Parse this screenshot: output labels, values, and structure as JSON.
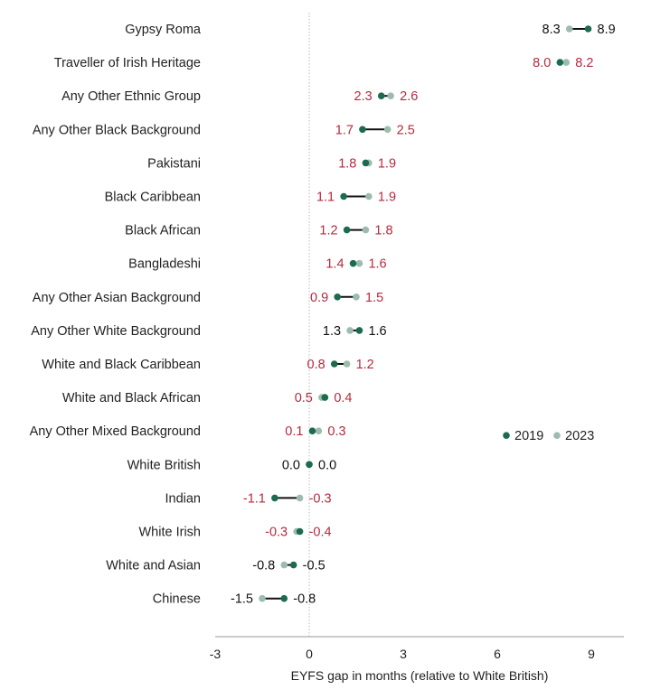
{
  "chart_data": {
    "type": "dumbbell",
    "xlabel": "EYFS gap in months (relative to White British)",
    "xlim": [
      -3,
      10
    ],
    "xticks": [
      -3,
      0,
      3,
      6,
      9
    ],
    "zero_line": "dotted",
    "legend": {
      "placement": "right",
      "entries": [
        "2019",
        "2023"
      ]
    },
    "colors": {
      "y2019": "#1b6b4f",
      "y2023": "#9dbcad",
      "connector": "#111111",
      "label_red": "#b52a3e",
      "label_black": "#111111",
      "axis": "#999999",
      "text": "#222222"
    },
    "rows": [
      {
        "category": "Gypsy Roma",
        "v2019": 8.9,
        "v2023": 8.3,
        "label_left": "8.3",
        "label_right": "8.9",
        "label_color": "black"
      },
      {
        "category": "Traveller of Irish Heritage",
        "v2019": 8.0,
        "v2023": 8.2,
        "label_left": "8.0",
        "label_right": "8.2",
        "label_color": "red"
      },
      {
        "category": "Any Other Ethnic Group",
        "v2019": 2.3,
        "v2023": 2.6,
        "label_left": "2.3",
        "label_right": "2.6",
        "label_color": "red"
      },
      {
        "category": "Any Other Black Background",
        "v2019": 1.7,
        "v2023": 2.5,
        "label_left": "1.7",
        "label_right": "2.5",
        "label_color": "red"
      },
      {
        "category": "Pakistani",
        "v2019": 1.8,
        "v2023": 1.9,
        "label_left": "1.8",
        "label_right": "1.9",
        "label_color": "red"
      },
      {
        "category": "Black Caribbean",
        "v2019": 1.1,
        "v2023": 1.9,
        "label_left": "1.1",
        "label_right": "1.9",
        "label_color": "red"
      },
      {
        "category": "Black African",
        "v2019": 1.2,
        "v2023": 1.8,
        "label_left": "1.2",
        "label_right": "1.8",
        "label_color": "red"
      },
      {
        "category": "Bangladeshi",
        "v2019": 1.4,
        "v2023": 1.6,
        "label_left": "1.4",
        "label_right": "1.6",
        "label_color": "red"
      },
      {
        "category": "Any Other Asian Background",
        "v2019": 0.9,
        "v2023": 1.5,
        "label_left": "0.9",
        "label_right": "1.5",
        "label_color": "red"
      },
      {
        "category": "Any Other White Background",
        "v2019": 1.6,
        "v2023": 1.3,
        "label_left": "1.3",
        "label_right": "1.6",
        "label_color": "black"
      },
      {
        "category": "White and Black Caribbean",
        "v2019": 0.8,
        "v2023": 1.2,
        "label_left": "0.8",
        "label_right": "1.2",
        "label_color": "red"
      },
      {
        "category": "White and Black African",
        "v2019": 0.5,
        "v2023": 0.4,
        "label_left": "0.5",
        "label_right": "0.4",
        "label_color": "red"
      },
      {
        "category": "Any Other Mixed Background",
        "v2019": 0.1,
        "v2023": 0.3,
        "label_left": "0.1",
        "label_right": "0.3",
        "label_color": "red"
      },
      {
        "category": "White British",
        "v2019": 0.0,
        "v2023": 0.0,
        "label_left": "0.0",
        "label_right": "0.0",
        "label_color": "black"
      },
      {
        "category": "Indian",
        "v2019": -1.1,
        "v2023": -0.3,
        "label_left": "-1.1",
        "label_right": "-0.3",
        "label_color": "red"
      },
      {
        "category": "White Irish",
        "v2019": -0.3,
        "v2023": -0.4,
        "label_left": "-0.3",
        "label_right": "-0.4",
        "label_color": "red"
      },
      {
        "category": "White and Asian",
        "v2019": -0.5,
        "v2023": -0.8,
        "label_left": "-0.8",
        "label_right": "-0.5",
        "label_color": "black"
      },
      {
        "category": "Chinese",
        "v2019": -0.8,
        "v2023": -1.5,
        "label_left": "-1.5",
        "label_right": "-0.8",
        "label_color": "black"
      }
    ]
  }
}
